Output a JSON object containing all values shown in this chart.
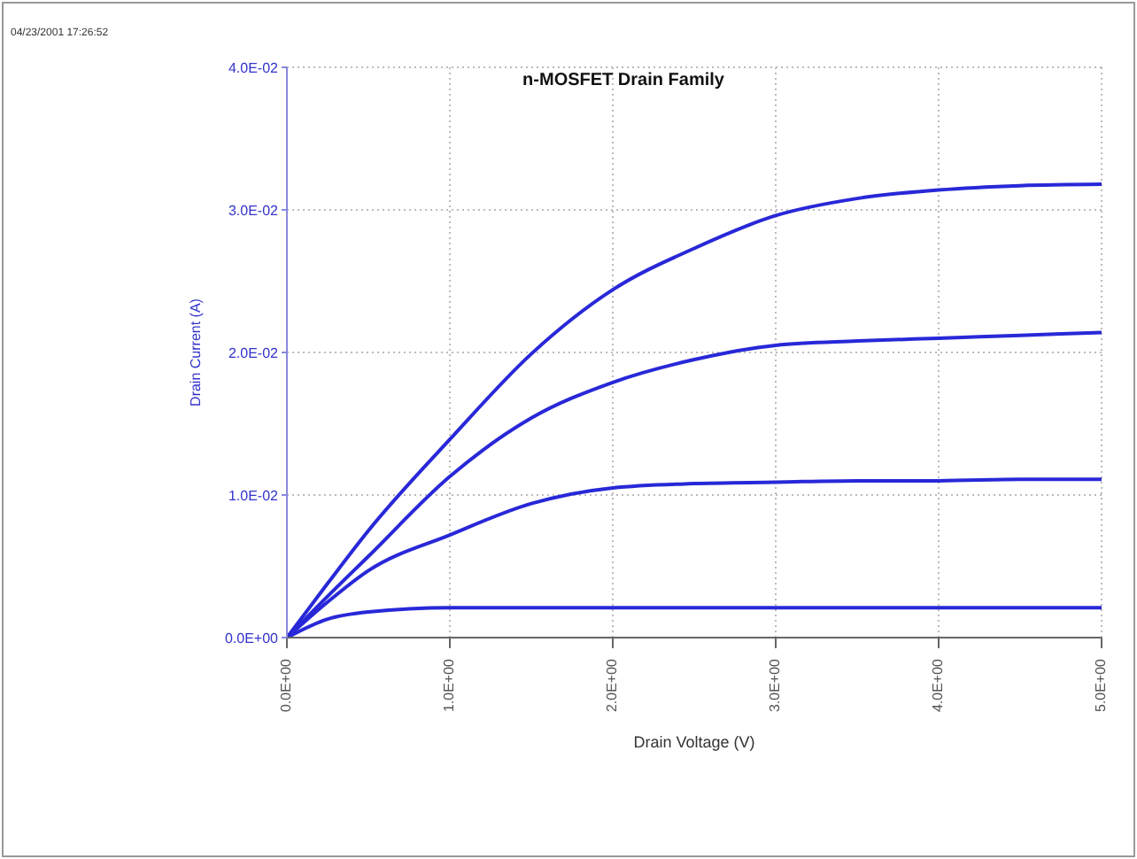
{
  "chart_data": {
    "type": "line",
    "title": "n-MOSFET Drain Family",
    "xlabel": "Drain Voltage (V)",
    "ylabel": "Drain Current (A)",
    "annotations": [
      "04/23/2001 17:26:52"
    ],
    "x": [
      0,
      0.25,
      0.5,
      1,
      1.5,
      2,
      2.5,
      3,
      3.5,
      4,
      4.5,
      5
    ],
    "series": [
      {
        "color": "#2828d8",
        "values": [
          0,
          0.0038,
          0.0075,
          0.0139,
          0.0199,
          0.0244,
          0.0273,
          0.0296,
          0.0308,
          0.0314,
          0.0317,
          0.0318
        ]
      },
      {
        "color": "#2828d8",
        "values": [
          0,
          0.0029,
          0.0057,
          0.0113,
          0.0154,
          0.0179,
          0.0195,
          0.0205,
          0.0208,
          0.021,
          0.0212,
          0.0214
        ]
      },
      {
        "color": "#2828d8",
        "values": [
          0,
          0.0025,
          0.0047,
          0.0072,
          0.0094,
          0.0105,
          0.0108,
          0.0109,
          0.011,
          0.011,
          0.0111,
          0.0111
        ]
      },
      {
        "color": "#2828d8",
        "values": [
          0,
          0.0013,
          0.0018,
          0.0021,
          0.0021,
          0.0021,
          0.0021,
          0.0021,
          0.0021,
          0.0021,
          0.0021,
          0.0021
        ]
      }
    ],
    "xlim": [
      0,
      5
    ],
    "ylim": [
      0,
      0.04
    ],
    "xticks": [
      {
        "value": 0,
        "label": "0.0E+00"
      },
      {
        "value": 1,
        "label": "1.0E+00"
      },
      {
        "value": 2,
        "label": "2.0E+00"
      },
      {
        "value": 3,
        "label": "3.0E+00"
      },
      {
        "value": 4,
        "label": "4.0E+00"
      },
      {
        "value": 5,
        "label": "5.0E+00"
      }
    ],
    "yticks": [
      {
        "value": 0,
        "label": "0.0E+00"
      },
      {
        "value": 0.01,
        "label": "1.0E-02"
      },
      {
        "value": 0.02,
        "label": "2.0E-02"
      },
      {
        "value": 0.03,
        "label": "3.0E-02"
      },
      {
        "value": 0.04,
        "label": "4.0E-02"
      }
    ],
    "grid": true,
    "legend": false,
    "marker": "none",
    "line_style": "solid"
  }
}
